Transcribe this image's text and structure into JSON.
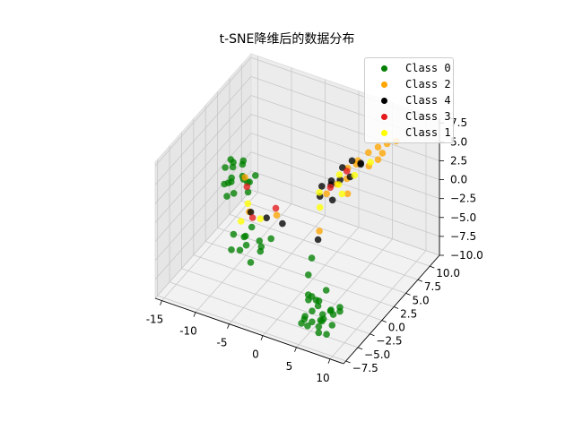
{
  "chart_data": {
    "type": "scatter",
    "dims": 3,
    "title": "t-SNE降维后的数据分布",
    "xlabel": "",
    "ylabel": "",
    "zlabel": "",
    "grid": true,
    "legend_position": "top-right",
    "xlim": [
      -16,
      12
    ],
    "ylim": [
      -8,
      12
    ],
    "zlim": [
      -10,
      8
    ],
    "x_ticks": [
      "-15",
      "-10",
      "-5",
      "0",
      "5",
      "10"
    ],
    "y_ticks": [
      "−7.5",
      "−5.0",
      "−2.5",
      "0.0",
      "2.5",
      "5.0",
      "7.5",
      "10.0"
    ],
    "z_ticks": [
      "−10.0",
      "−7.5",
      "−5.0",
      "−2.5",
      "0.0",
      "2.5",
      "5.0",
      "7.5"
    ],
    "series": [
      {
        "name": "Class 0",
        "color": "#008000",
        "points": [
          [
            -14.5,
            4.5,
            -1.2
          ],
          [
            -13.8,
            5.2,
            -0.8
          ],
          [
            -13.2,
            4.0,
            -1.8
          ],
          [
            -12.6,
            5.6,
            -0.5
          ],
          [
            -12.0,
            4.8,
            -2.2
          ],
          [
            -11.5,
            3.9,
            -1.0
          ],
          [
            -14.0,
            3.6,
            -2.6
          ],
          [
            -13.0,
            6.0,
            -1.4
          ],
          [
            -12.3,
            3.2,
            -3.0
          ],
          [
            -11.7,
            5.2,
            -2.8
          ],
          [
            -13.6,
            4.4,
            0.2
          ],
          [
            -12.9,
            2.9,
            -1.6
          ],
          [
            -11.1,
            4.5,
            -3.4
          ],
          [
            -14.3,
            5.8,
            -2.0
          ],
          [
            -12.1,
            6.2,
            -3.6
          ],
          [
            -13.4,
            3.3,
            -3.8
          ],
          [
            -10.8,
            5.6,
            -1.9
          ],
          [
            -13.9,
            4.9,
            -3.2
          ],
          [
            -8.2,
            -2.6,
            -3.0
          ],
          [
            -7.2,
            -1.8,
            -3.6
          ],
          [
            -6.2,
            -2.9,
            -2.4
          ],
          [
            -5.2,
            -1.4,
            -3.8
          ],
          [
            -7.8,
            -3.6,
            -4.2
          ],
          [
            -5.8,
            -3.3,
            -3.2
          ],
          [
            -4.5,
            -2.2,
            -4.4
          ],
          [
            -6.7,
            -0.9,
            -2.8
          ],
          [
            -3.8,
            -3.0,
            -3.0
          ],
          [
            -7.4,
            -2.4,
            -5.0
          ],
          [
            -3.2,
            -1.8,
            -2.6
          ],
          [
            -4.8,
            -3.8,
            -4.8
          ],
          [
            2.5,
            -2.0,
            -8.8
          ],
          [
            3.5,
            -1.2,
            -9.2
          ],
          [
            4.5,
            -2.8,
            -8.4
          ],
          [
            5.5,
            -1.6,
            -9.6
          ],
          [
            3.0,
            -3.4,
            -9.8
          ],
          [
            4.0,
            -0.4,
            -8.2
          ],
          [
            5.0,
            -3.0,
            -10.0
          ],
          [
            6.0,
            -2.2,
            -8.9
          ],
          [
            3.8,
            -4.0,
            -10.4
          ],
          [
            2.8,
            -0.8,
            -9.6
          ],
          [
            6.4,
            -0.9,
            -9.9
          ],
          [
            4.6,
            -1.8,
            -10.8
          ],
          [
            5.8,
            -3.8,
            -9.3
          ],
          [
            3.3,
            -2.4,
            -7.8
          ],
          [
            4.9,
            -4.6,
            -9.1
          ],
          [
            6.6,
            -2.8,
            -10.3
          ],
          [
            2.6,
            -3.0,
            -10.6
          ],
          [
            5.2,
            -0.6,
            -10.9
          ],
          [
            4.2,
            -3.6,
            -8.6
          ],
          [
            6.9,
            -1.6,
            -8.7
          ],
          [
            3.6,
            -5.0,
            -9.4
          ],
          [
            5.6,
            -4.2,
            -10.6
          ],
          [
            4.4,
            -2.5,
            -11.4
          ],
          [
            2.2,
            -1.6,
            -8.5
          ],
          [
            6.2,
            -3.4,
            -11.2
          ],
          [
            3.9,
            -1.0,
            -11.0
          ],
          [
            0.5,
            1.5,
            -6.4
          ],
          [
            1.5,
            -0.6,
            -6.8
          ]
        ]
      },
      {
        "name": "Class 2",
        "color": "#ffa500",
        "points": [
          [
            -10.5,
            3.0,
            -0.2
          ],
          [
            -7.0,
            -1.0,
            -0.8
          ],
          [
            -4.0,
            0.5,
            -1.4
          ],
          [
            3.0,
            5.5,
            3.4
          ],
          [
            4.0,
            6.2,
            4.2
          ],
          [
            5.0,
            7.0,
            5.0
          ],
          [
            6.0,
            7.6,
            5.6
          ],
          [
            7.0,
            8.1,
            6.0
          ],
          [
            3.5,
            4.6,
            2.8
          ],
          [
            5.5,
            6.4,
            3.8
          ],
          [
            6.5,
            6.9,
            4.6
          ],
          [
            4.5,
            5.2,
            4.6
          ],
          [
            2.5,
            4.0,
            2.2
          ],
          [
            1.5,
            3.2,
            1.2
          ],
          [
            8.0,
            8.6,
            6.3
          ],
          [
            6.8,
            7.4,
            5.2
          ],
          [
            2.0,
            1.0,
            -2.0
          ],
          [
            4.2,
            3.8,
            1.6
          ]
        ]
      },
      {
        "name": "Class 4",
        "color": "#000000",
        "points": [
          [
            -6.5,
            -1.4,
            -0.4
          ],
          [
            -4.5,
            -0.9,
            -0.9
          ],
          [
            -2.5,
            -0.4,
            -1.4
          ],
          [
            1.0,
            2.5,
            1.2
          ],
          [
            2.0,
            3.4,
            2.4
          ],
          [
            3.0,
            3.9,
            3.0
          ],
          [
            4.0,
            4.6,
            3.2
          ],
          [
            5.0,
            5.4,
            4.6
          ],
          [
            1.5,
            4.2,
            2.2
          ],
          [
            2.5,
            5.1,
            3.6
          ],
          [
            3.5,
            5.7,
            4.4
          ],
          [
            4.5,
            6.1,
            4.1
          ],
          [
            0.5,
            3.6,
            1.6
          ],
          [
            2.8,
            2.6,
            1.2
          ],
          [
            1.8,
            1.0,
            -3.2
          ]
        ]
      },
      {
        "name": "Class 3",
        "color": "#e41a1c",
        "points": [
          [
            -9.5,
            2.0,
            -0.4
          ],
          [
            -6.8,
            -0.6,
            -1.8
          ],
          [
            -4.2,
            0.6,
            -0.6
          ],
          [
            3.5,
            4.6,
            3.8
          ],
          [
            2.2,
            3.0,
            2.4
          ]
        ]
      },
      {
        "name": "Class 1",
        "color": "#ffff00",
        "points": [
          [
            -9.2,
            1.8,
            -2.4
          ],
          [
            -8.5,
            -0.6,
            -2.8
          ],
          [
            -5.5,
            -0.8,
            -1.4
          ],
          [
            1.5,
            1.8,
            0.4
          ],
          [
            3.0,
            3.6,
            2.6
          ],
          [
            4.8,
            4.4,
            3.8
          ],
          [
            3.8,
            3.2,
            1.9
          ],
          [
            2.4,
            4.6,
            3.0
          ],
          [
            5.6,
            6.6,
            4.2
          ],
          [
            1.0,
            2.4,
            1.8
          ]
        ]
      }
    ]
  }
}
